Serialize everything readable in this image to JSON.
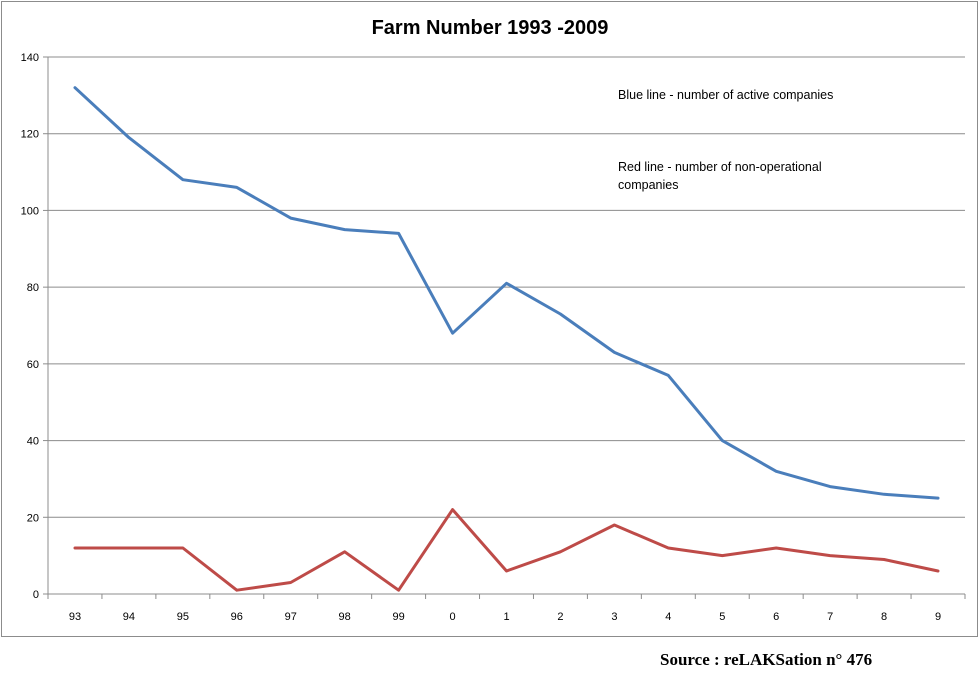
{
  "chart_data": {
    "type": "line",
    "title": "Farm Number 1993 -2009",
    "categories": [
      "93",
      "94",
      "95",
      "96",
      "97",
      "98",
      "99",
      "0",
      "1",
      "2",
      "3",
      "4",
      "5",
      "6",
      "7",
      "8",
      "9"
    ],
    "y_ticks": [
      "0",
      "20",
      "40",
      "60",
      "80",
      "100",
      "120",
      "140"
    ],
    "ylim": [
      0,
      140
    ],
    "grid": true,
    "legend": "none",
    "series": [
      {
        "name": "Active companies",
        "color": "#4a7ebb",
        "values": [
          132,
          119,
          108,
          106,
          98,
          95,
          94,
          68,
          81,
          73,
          63,
          57,
          40,
          32,
          28,
          26,
          25
        ]
      },
      {
        "name": "Non-operational companies",
        "color": "#be4b48",
        "values": [
          12,
          12,
          12,
          1,
          3,
          11,
          1,
          22,
          6,
          11,
          18,
          12,
          10,
          12,
          10,
          9,
          6
        ]
      }
    ],
    "annotations": {
      "blue": "Blue line - number of active companies",
      "red_line1": "Red line - number of non-operational",
      "red_line2": "companies"
    }
  },
  "source": "Source : reLAKSation n° 476"
}
